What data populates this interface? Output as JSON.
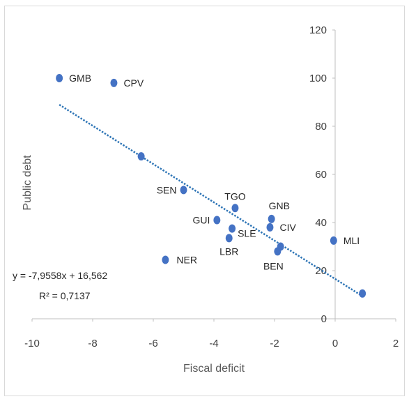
{
  "chart_data": {
    "type": "scatter",
    "xlabel": "Fiscal deficit",
    "ylabel": "Public debt",
    "xlim": [
      -10,
      2
    ],
    "ylim": [
      0,
      120
    ],
    "x_ticks": [
      "-10",
      "-8",
      "-6",
      "-4",
      "-2",
      "0",
      "2"
    ],
    "y_ticks": [
      "0",
      "20",
      "40",
      "60",
      "80",
      "100",
      "120"
    ],
    "points": [
      {
        "label": "GMB",
        "x": -9.1,
        "y": 100
      },
      {
        "label": "CPV",
        "x": -7.3,
        "y": 98
      },
      {
        "label": "",
        "x": -6.4,
        "y": 67.5
      },
      {
        "label": "SEN",
        "x": -5.0,
        "y": 53.5
      },
      {
        "label": "TGO",
        "x": -3.3,
        "y": 46
      },
      {
        "label": "GNB",
        "x": -2.1,
        "y": 41.5
      },
      {
        "label": "GUI",
        "x": -3.9,
        "y": 41
      },
      {
        "label": "CIV",
        "x": -2.15,
        "y": 38
      },
      {
        "label": "SLE",
        "x": -3.4,
        "y": 37.5
      },
      {
        "label": "LBR",
        "x": -3.5,
        "y": 33.5
      },
      {
        "label": "",
        "x": -1.8,
        "y": 30
      },
      {
        "label": "BEN",
        "x": -1.9,
        "y": 28
      },
      {
        "label": "MLI",
        "x": -0.05,
        "y": 32.5
      },
      {
        "label": "NER",
        "x": -5.6,
        "y": 24.5
      },
      {
        "label": "",
        "x": 0.9,
        "y": 10.5
      }
    ],
    "trendline": {
      "slope": -7.9558,
      "intercept": 16.562,
      "x_range": [
        -9.1,
        0.9
      ],
      "color": "#2e75b6",
      "equation": "y = -7,9558x + 16,562",
      "r_squared": "R² = 0,7137"
    },
    "marker_color": "#4472c4",
    "grid": false
  }
}
